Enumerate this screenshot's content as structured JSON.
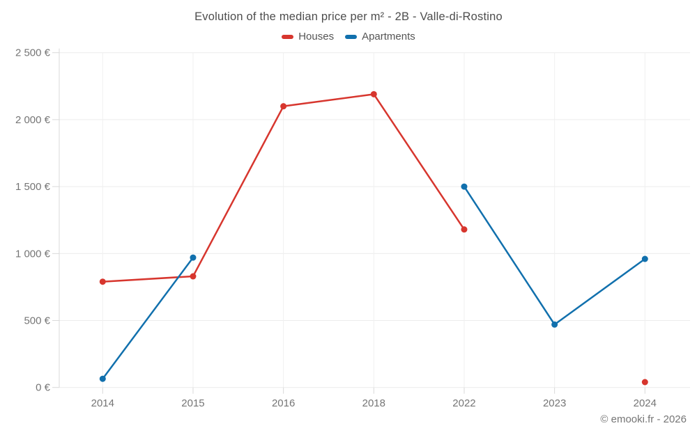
{
  "title": "Evolution of the median price per m² - 2B - Valle-di-Rostino",
  "copyright": "© emooki.fr - 2026",
  "colors": {
    "houses": "#d7362e",
    "apartments": "#1170ad",
    "gridline": "#ececec",
    "tick": "#d9d9d9",
    "axis_text": "#757575",
    "title_text": "#4d4d4d"
  },
  "chart_data": {
    "type": "line",
    "title": "Evolution of the median price per m² - 2B - Valle-di-Rostino",
    "categories": [
      "2014",
      "2015",
      "2016",
      "2018",
      "2022",
      "2023",
      "2024"
    ],
    "series": [
      {
        "name": "Houses",
        "color": "#d7362e",
        "values": [
          790,
          830,
          2100,
          2190,
          1180,
          null,
          40
        ]
      },
      {
        "name": "Apartments",
        "color": "#1170ad",
        "values": [
          65,
          970,
          null,
          null,
          1500,
          470,
          960
        ]
      }
    ],
    "yticks": [
      "0 €",
      "500 €",
      "1 000 €",
      "1 500 €",
      "2 000 €",
      "2 500 €"
    ],
    "ytick_values": [
      0,
      500,
      1000,
      1500,
      2000,
      2500
    ],
    "ylim": [
      0,
      2500
    ],
    "xlabel": "",
    "ylabel": "",
    "grid": true,
    "legend_position": "top",
    "marker_radius": 4.5,
    "line_width": 2.5,
    "note": "Houses series has no 2023 value and an isolated 2024 point; Apartments series has no 2016/2018 values (line gap between 2015 and 2022)"
  }
}
